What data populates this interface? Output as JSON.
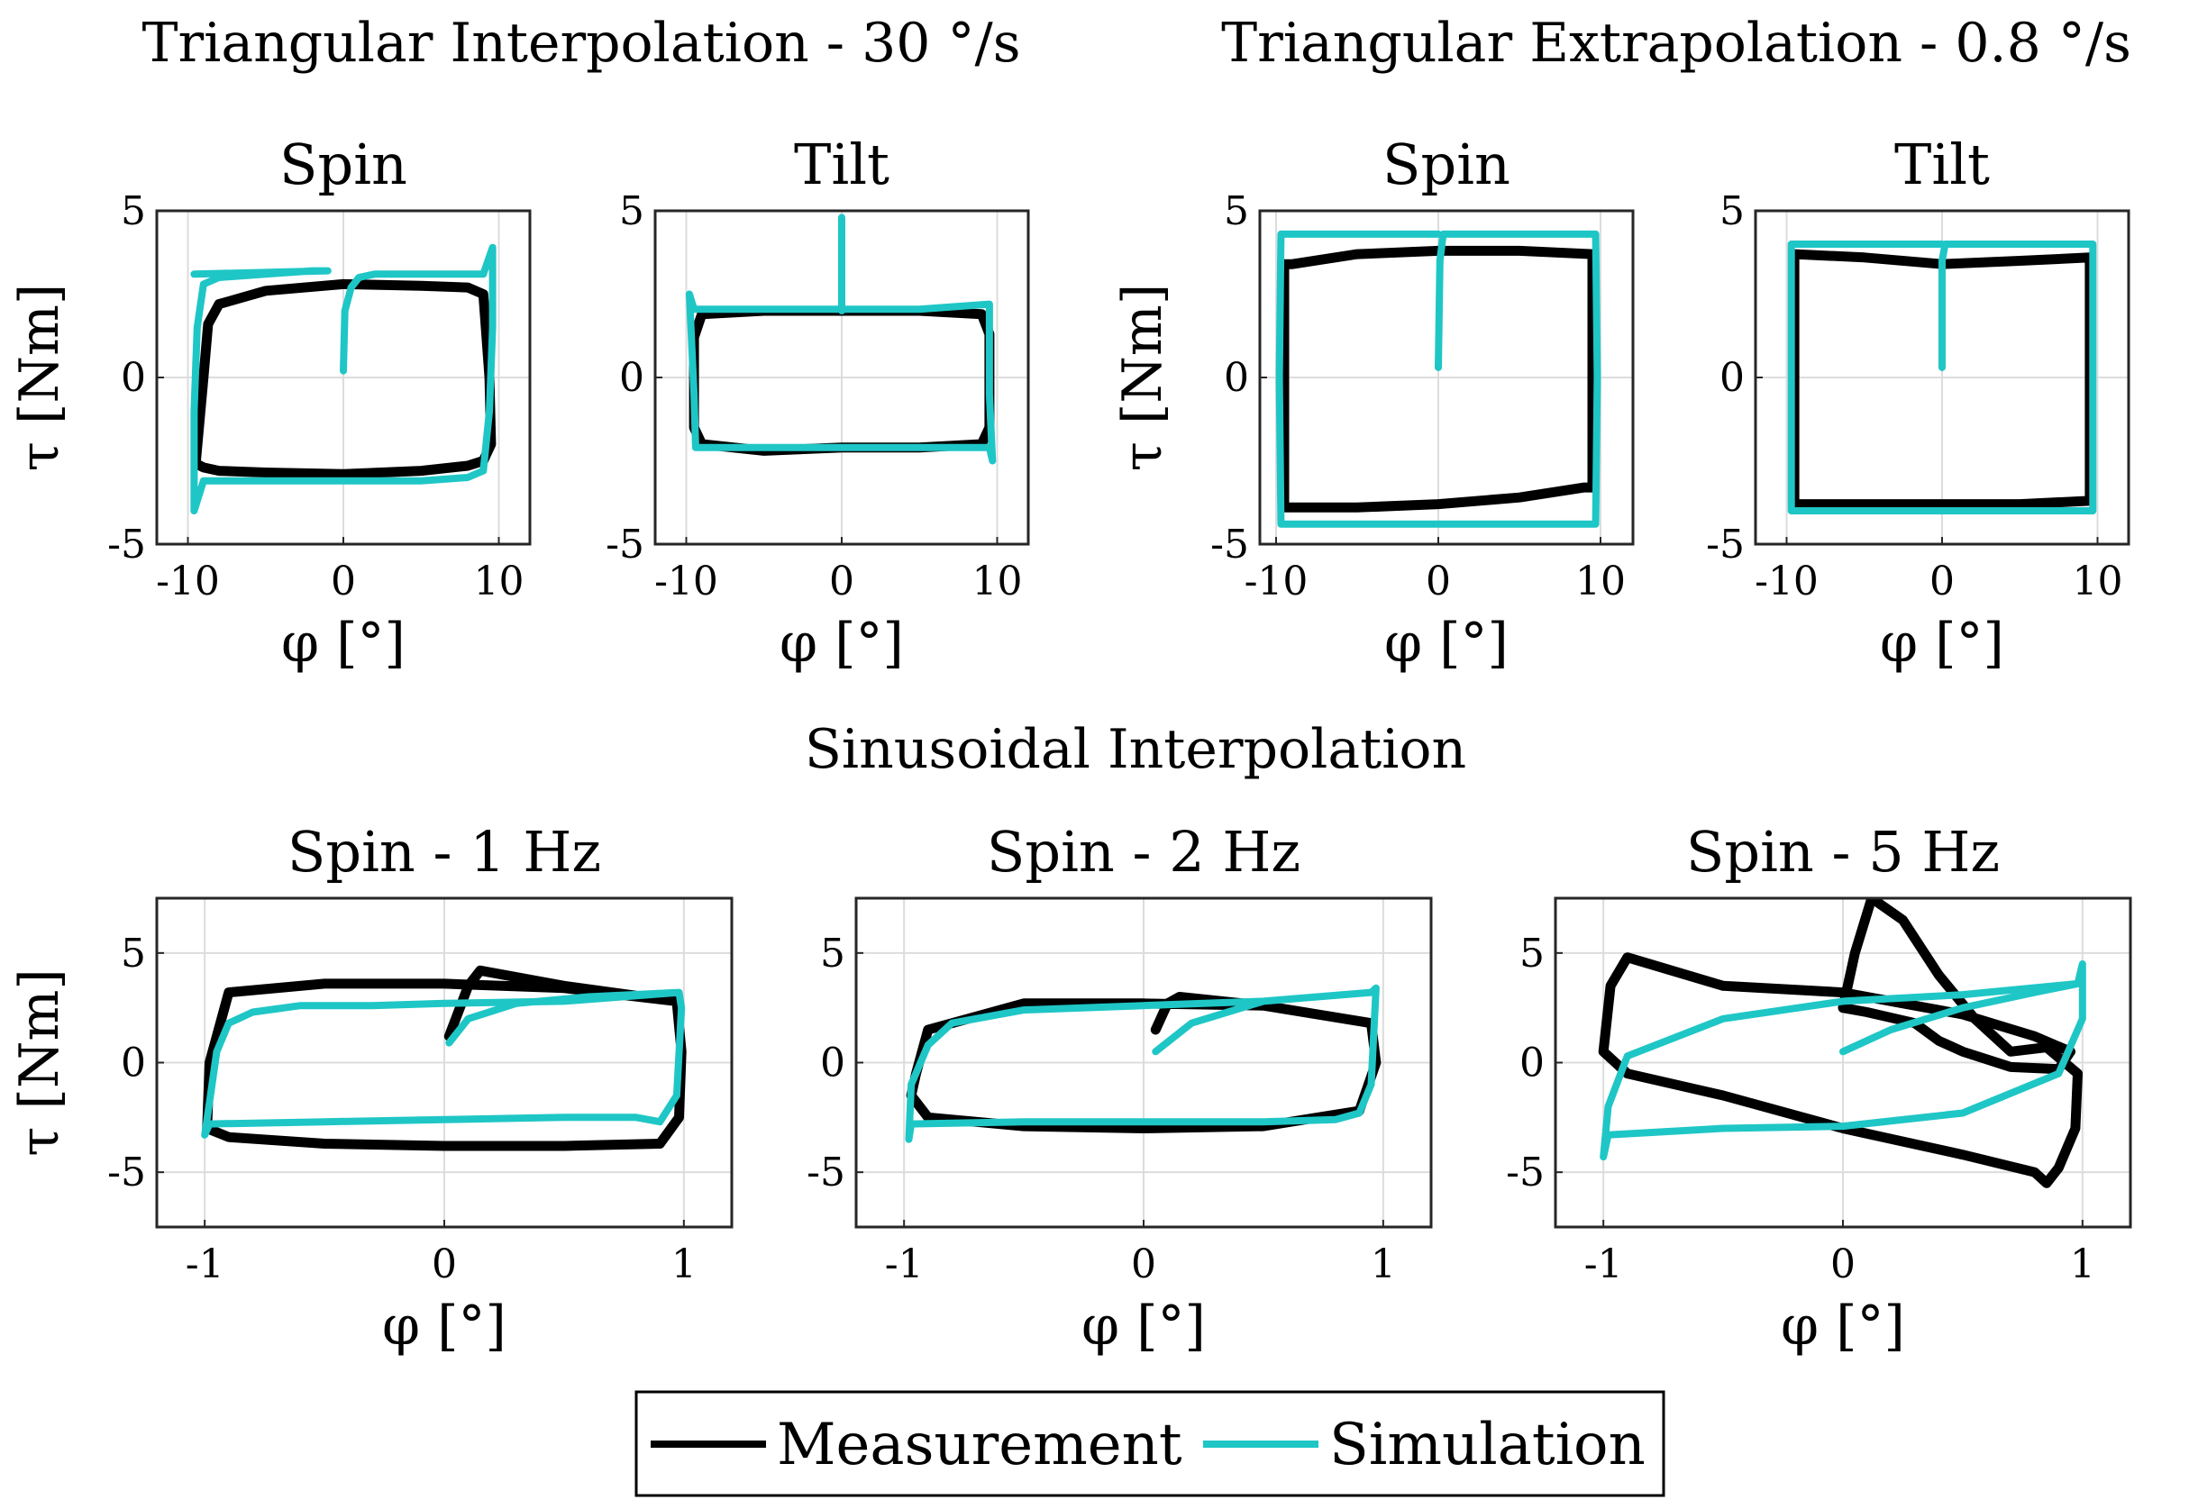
{
  "group_titles": {
    "tri_interp": "Triangular Interpolation - 30 °/s",
    "tri_extrap": "Triangular Extrapolation - 0.8 °/s",
    "sin_interp": "Sinusoidal Interpolation"
  },
  "axis_labels": {
    "x": "φ [°]",
    "y": "τ [Nm]"
  },
  "legend": {
    "measurement": "Measurement",
    "simulation": "Simulation"
  },
  "colors": {
    "measurement": "#000000",
    "simulation": "#1fc6c6",
    "grid": "#dcdcdc"
  },
  "chart_data": [
    {
      "type": "line",
      "title": "Spin",
      "group": "Triangular Interpolation - 30 °/s",
      "xlabel": "φ [°]",
      "ylabel": "τ [Nm]",
      "xlim": [
        -12,
        12
      ],
      "ylim": [
        -5,
        5
      ],
      "xticks": [
        -10,
        0,
        10
      ],
      "yticks": [
        -5,
        0,
        5
      ],
      "grid": true,
      "series": [
        {
          "name": "Measurement",
          "x": [
            -9.5,
            -9,
            -8.7,
            -8,
            -5,
            0,
            5,
            8,
            9,
            9.4,
            9.5,
            9,
            8,
            5,
            0,
            -5,
            -8,
            -9,
            -9.4,
            -9.5
          ],
          "y": [
            -2.6,
            0,
            1.6,
            2.2,
            2.6,
            2.8,
            2.75,
            2.7,
            2.5,
            0,
            -2,
            -2.5,
            -2.65,
            -2.8,
            -2.9,
            -2.85,
            -2.8,
            -2.7,
            -2.6,
            -2.6
          ]
        },
        {
          "name": "Simulation",
          "x": [
            0,
            0.1,
            0.5,
            1,
            2,
            5,
            9,
            9.6,
            9.6,
            9.4,
            9,
            8,
            5,
            0,
            -5,
            -9,
            -9.6,
            -9.6,
            -9.4,
            -9,
            -8,
            -5,
            -2,
            -1,
            -9.6
          ],
          "y": [
            0.2,
            2,
            2.7,
            3,
            3.1,
            3.1,
            3.1,
            3.9,
            1.5,
            -1,
            -2.8,
            -3,
            -3.1,
            -3.1,
            -3.1,
            -3.1,
            -4,
            -1,
            1.5,
            2.8,
            3,
            3.1,
            3.2,
            3.2,
            3.1
          ]
        }
      ]
    },
    {
      "type": "line",
      "title": "Tilt",
      "group": "Triangular Interpolation - 30 °/s",
      "xlabel": "φ [°]",
      "ylabel": "τ [Nm]",
      "xlim": [
        -12,
        12
      ],
      "ylim": [
        -5,
        5
      ],
      "xticks": [
        -10,
        0,
        10
      ],
      "yticks": [
        -5,
        0,
        5
      ],
      "grid": true,
      "series": [
        {
          "name": "Measurement",
          "x": [
            -9.5,
            -9,
            -5,
            0,
            5,
            9,
            9.5,
            9.5,
            9,
            5,
            0,
            -5,
            -9,
            -9.5,
            -9.5
          ],
          "y": [
            1.2,
            1.9,
            2,
            2,
            2,
            1.9,
            1.3,
            -1.5,
            -2,
            -2.1,
            -2.1,
            -2.2,
            -2,
            -1.5,
            1.2
          ]
        },
        {
          "name": "Simulation",
          "x": [
            0,
            0,
            0,
            -5,
            -9.5,
            -9.8,
            -9.5,
            -9.4,
            -5,
            0,
            5,
            9.5,
            9.7,
            9.5,
            9.5,
            5,
            0
          ],
          "y": [
            4.8,
            2,
            2.05,
            2.05,
            2.05,
            2.5,
            -0.5,
            -2.1,
            -2.1,
            -2.1,
            -2.1,
            -2.1,
            -2.5,
            -0.5,
            2.2,
            2.05,
            2.05
          ]
        }
      ]
    },
    {
      "type": "line",
      "title": "Spin",
      "group": "Triangular Extrapolation - 0.8 °/s",
      "xlabel": "φ [°]",
      "ylabel": "τ [Nm]",
      "xlim": [
        -11,
        12
      ],
      "ylim": [
        -5,
        5
      ],
      "xticks": [
        -10,
        0,
        10
      ],
      "yticks": [
        -5,
        0,
        5
      ],
      "grid": true,
      "series": [
        {
          "name": "Measurement",
          "x": [
            -9.5,
            -9,
            -5,
            0,
            5,
            9.5,
            9.5,
            9,
            5,
            0,
            -5,
            -9.5,
            -9.5
          ],
          "y": [
            3.4,
            3.4,
            3.7,
            3.8,
            3.8,
            3.7,
            -3.3,
            -3.3,
            -3.6,
            -3.8,
            -3.9,
            -3.9,
            3.4
          ]
        },
        {
          "name": "Simulation",
          "x": [
            0,
            0.1,
            0.3,
            5,
            9.7,
            9.8,
            9.7,
            5,
            0,
            -5,
            -9.7,
            -9.8,
            -9.7,
            -5,
            0
          ],
          "y": [
            0.3,
            3.5,
            4.3,
            4.3,
            4.3,
            0,
            -4.4,
            -4.4,
            -4.4,
            -4.4,
            -4.4,
            0,
            4.3,
            4.3,
            4.3
          ]
        }
      ]
    },
    {
      "type": "line",
      "title": "Tilt",
      "group": "Triangular Extrapolation - 0.8 °/s",
      "xlabel": "φ [°]",
      "ylabel": "τ [Nm]",
      "xlim": [
        -12,
        12
      ],
      "ylim": [
        -5,
        5
      ],
      "xticks": [
        -10,
        0,
        10
      ],
      "yticks": [
        -5,
        0,
        5
      ],
      "grid": true,
      "series": [
        {
          "name": "Measurement",
          "x": [
            -9.5,
            -5,
            0,
            5,
            9.5,
            9.5,
            5,
            0,
            -5,
            -9.5,
            -9.5
          ],
          "y": [
            3.7,
            3.6,
            3.4,
            3.5,
            3.6,
            -3.7,
            -3.8,
            -3.8,
            -3.8,
            -3.8,
            3.7
          ]
        },
        {
          "name": "Simulation",
          "x": [
            0,
            0,
            0.2,
            5,
            9.7,
            9.7,
            5,
            0,
            -5,
            -9.7,
            -9.7,
            -5,
            0
          ],
          "y": [
            0.3,
            3.5,
            4,
            4,
            4,
            -4,
            -4,
            -4,
            -4,
            -4,
            4,
            4,
            4
          ]
        }
      ]
    },
    {
      "type": "line",
      "title": "Spin - 1 Hz",
      "group": "Sinusoidal Interpolation",
      "xlabel": "φ [°]",
      "ylabel": "τ [Nm]",
      "xlim": [
        -1.2,
        1.2
      ],
      "ylim": [
        -7.5,
        7.5
      ],
      "xticks": [
        -1,
        0,
        1
      ],
      "yticks": [
        -5,
        0,
        5
      ],
      "grid": true,
      "series": [
        {
          "name": "Measurement",
          "x": [
            0.02,
            0.1,
            0.15,
            0.5,
            0.97,
            0.99,
            0.98,
            0.9,
            0.5,
            0,
            -0.5,
            -0.9,
            -0.99,
            -0.98,
            -0.9,
            -0.5,
            0,
            0.5,
            0.97
          ],
          "y": [
            1.2,
            3.5,
            4.2,
            3.5,
            2.8,
            0.5,
            -2.5,
            -3.7,
            -3.8,
            -3.8,
            -3.7,
            -3.4,
            -3,
            0,
            3.2,
            3.6,
            3.6,
            3.4,
            2.8
          ]
        },
        {
          "name": "Simulation",
          "x": [
            0.02,
            0.1,
            0.3,
            0.6,
            0.98,
            0.99,
            0.97,
            0.9,
            0.8,
            0.5,
            0,
            -0.5,
            -0.98,
            -1,
            -0.98,
            -0.95,
            -0.9,
            -0.8,
            -0.6,
            -0.3,
            0,
            0.5,
            0.98
          ],
          "y": [
            0.9,
            2,
            2.7,
            3,
            3.2,
            2.5,
            -1.5,
            -2.7,
            -2.5,
            -2.5,
            -2.6,
            -2.7,
            -2.8,
            -3.3,
            -1.8,
            0.5,
            1.8,
            2.3,
            2.6,
            2.6,
            2.7,
            2.8,
            3.2
          ]
        }
      ]
    },
    {
      "type": "line",
      "title": "Spin - 2 Hz",
      "group": "Sinusoidal Interpolation",
      "xlabel": "φ [°]",
      "ylabel": "τ [Nm]",
      "xlim": [
        -1.2,
        1.2
      ],
      "ylim": [
        -7.5,
        7.5
      ],
      "xticks": [
        -1,
        0,
        1
      ],
      "yticks": [
        -5,
        0,
        5
      ],
      "grid": true,
      "series": [
        {
          "name": "Measurement",
          "x": [
            0.05,
            0.1,
            0.15,
            0.5,
            0.95,
            0.97,
            0.9,
            0.5,
            0,
            -0.5,
            -0.9,
            -0.97,
            -0.95,
            -0.9,
            -0.5,
            0,
            0.5,
            0.95
          ],
          "y": [
            1.5,
            2.7,
            3,
            2.6,
            1.8,
            0,
            -2.2,
            -2.9,
            -3,
            -2.9,
            -2.5,
            -1.5,
            -0.5,
            1.5,
            2.7,
            2.7,
            2.6,
            1.8
          ]
        },
        {
          "name": "Simulation",
          "x": [
            0.05,
            0.2,
            0.5,
            0.95,
            0.97,
            0.95,
            0.9,
            0.8,
            0.5,
            0,
            -0.5,
            -0.97,
            -0.98,
            -0.97,
            -0.9,
            -0.8,
            -0.5,
            0,
            0.5,
            0.95
          ],
          "y": [
            0.5,
            1.8,
            2.8,
            3.2,
            3.4,
            -1,
            -2.3,
            -2.6,
            -2.7,
            -2.7,
            -2.7,
            -2.8,
            -3.5,
            -1,
            0.8,
            1.8,
            2.4,
            2.6,
            2.8,
            3.2
          ]
        }
      ]
    },
    {
      "type": "line",
      "title": "Spin - 5 Hz",
      "group": "Sinusoidal Interpolation",
      "xlabel": "φ [°]",
      "ylabel": "τ [Nm]",
      "xlim": [
        -1.2,
        1.2
      ],
      "ylim": [
        -7.5,
        7.5
      ],
      "xticks": [
        -1,
        0,
        1
      ],
      "yticks": [
        -5,
        0,
        5
      ],
      "grid": true,
      "series": [
        {
          "name": "Measurement",
          "x": [
            0,
            0.05,
            0.12,
            0.25,
            0.4,
            0.55,
            0.7,
            0.85,
            0.98,
            0.97,
            0.9,
            0.85,
            0.8,
            0.5,
            0,
            -0.5,
            -0.9,
            -1,
            -0.97,
            -0.9,
            -0.5,
            0,
            0.5,
            0.8,
            0.95,
            0.9,
            0.7,
            0.5,
            0.4,
            0.3,
            0.1,
            0
          ],
          "y": [
            2.5,
            5,
            7.5,
            6.5,
            4,
            2,
            0.5,
            0.7,
            -0.5,
            -3,
            -4.8,
            -5.5,
            -5,
            -4.2,
            -3,
            -1.5,
            -0.5,
            0.5,
            3.5,
            4.8,
            3.5,
            3.2,
            2.2,
            1.2,
            0.5,
            -0.3,
            -0.2,
            0.5,
            1,
            1.8,
            2.3,
            2.5
          ]
        },
        {
          "name": "Simulation",
          "x": [
            0,
            0.2,
            0.5,
            0.8,
            0.98,
            1,
            1,
            0.9,
            0.5,
            0,
            -0.5,
            -0.98,
            -1,
            -0.98,
            -0.9,
            -0.5,
            0,
            0.5,
            0.98
          ],
          "y": [
            0.5,
            1.5,
            2.5,
            3.2,
            3.6,
            4.5,
            2,
            -0.5,
            -2.3,
            -2.9,
            -3,
            -3.3,
            -4.3,
            -2,
            0.3,
            2,
            2.8,
            3.1,
            3.6
          ]
        }
      ]
    }
  ]
}
